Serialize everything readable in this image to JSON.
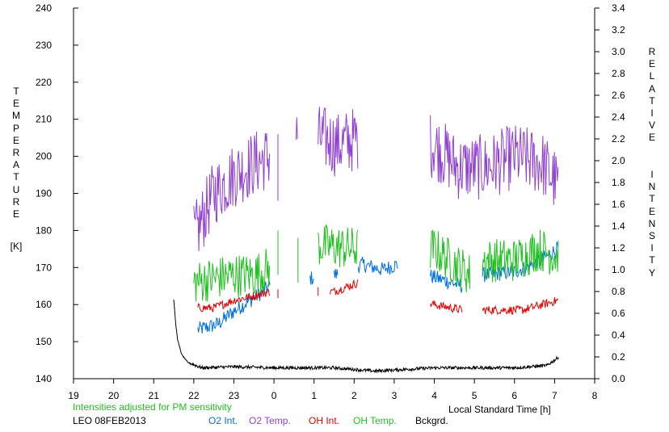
{
  "chart_data": {
    "type": "line",
    "title": "",
    "xlabel": "Local Standard Time [h]",
    "xlim": [
      19,
      32
    ],
    "x_tick_labels": [
      "19",
      "20",
      "21",
      "22",
      "23",
      "0",
      "1",
      "2",
      "3",
      "4",
      "5",
      "6",
      "7",
      "8"
    ],
    "ylabel_left": "TEMPERATURE",
    "ylabel_left_unit": "[K]",
    "ylim_left": [
      140,
      240
    ],
    "y_left_tick_labels": [
      "140",
      "150",
      "160",
      "170",
      "180",
      "190",
      "200",
      "210",
      "220",
      "230",
      "240"
    ],
    "ylabel_right": "RELATIVE INTENSITY",
    "ylim_right": [
      0,
      3.4
    ],
    "y_right_tick_labels": [
      "0.0",
      "0.2",
      "0.4",
      "0.6",
      "0.8",
      "1.0",
      "1.2",
      "1.4",
      "1.6",
      "1.8",
      "2.0",
      "2.2",
      "2.4",
      "2.6",
      "2.8",
      "3.0",
      "3.2",
      "3.4"
    ],
    "annotation": "Intensities adjusted for PM sensitivity",
    "station": "LEO 08FEB2013",
    "legend_position": "bottom",
    "grid": false,
    "series": [
      {
        "name": "O2 Int.",
        "axis": "right",
        "color": "#0070e0",
        "level": 0.9,
        "spread": 0.07,
        "segments": [
          [
            22.1,
            23.9
          ],
          [
            24.9,
            25.0
          ],
          [
            25.5,
            25.6
          ],
          [
            26.1,
            27.1
          ],
          [
            27.9,
            28.7
          ],
          [
            29.2,
            31.1
          ]
        ],
        "values": [
          [
            22.1,
            0.45
          ],
          [
            22.6,
            0.5
          ],
          [
            23.0,
            0.62
          ],
          [
            23.5,
            0.74
          ],
          [
            23.9,
            0.85
          ],
          [
            24.9,
            0.92
          ],
          [
            25.5,
            0.95
          ],
          [
            26.2,
            1.05
          ],
          [
            26.7,
            1.0
          ],
          [
            27.1,
            1.05
          ],
          [
            28.0,
            0.93
          ],
          [
            28.7,
            0.85
          ],
          [
            29.2,
            0.95
          ],
          [
            30.0,
            0.98
          ],
          [
            30.6,
            1.07
          ],
          [
            31.1,
            1.2
          ]
        ]
      },
      {
        "name": "O2 Temp.",
        "axis": "left",
        "color": "#9040d0",
        "level": 195,
        "spread": 9,
        "segments": [
          [
            22.0,
            23.9
          ],
          [
            24.1,
            24.1
          ],
          [
            24.55,
            24.6
          ],
          [
            25.1,
            26.1
          ],
          [
            27.9,
            31.1
          ]
        ],
        "values": [
          [
            22.0,
            178
          ],
          [
            22.5,
            190
          ],
          [
            23.0,
            195
          ],
          [
            23.5,
            198
          ],
          [
            23.9,
            200
          ],
          [
            24.1,
            197
          ],
          [
            24.55,
            205
          ],
          [
            25.2,
            205
          ],
          [
            25.6,
            203
          ],
          [
            26.1,
            205
          ],
          [
            28.0,
            203
          ],
          [
            28.6,
            197
          ],
          [
            29.3,
            197
          ],
          [
            30.0,
            200
          ],
          [
            30.7,
            198
          ],
          [
            31.1,
            192
          ]
        ]
      },
      {
        "name": "OH Int.",
        "axis": "right",
        "color": "#e00000",
        "level": 0.65,
        "spread": 0.04,
        "segments": [
          [
            22.1,
            23.9
          ],
          [
            24.1,
            24.1
          ],
          [
            25.1,
            25.1
          ],
          [
            25.4,
            26.1
          ],
          [
            27.9,
            28.7
          ],
          [
            29.2,
            31.1
          ]
        ],
        "values": [
          [
            22.1,
            0.65
          ],
          [
            22.5,
            0.65
          ],
          [
            23.0,
            0.72
          ],
          [
            23.5,
            0.76
          ],
          [
            23.9,
            0.8
          ],
          [
            24.1,
            0.78
          ],
          [
            25.1,
            0.8
          ],
          [
            25.5,
            0.8
          ],
          [
            26.1,
            0.88
          ],
          [
            28.0,
            0.68
          ],
          [
            28.7,
            0.63
          ],
          [
            29.2,
            0.63
          ],
          [
            30.2,
            0.63
          ],
          [
            31.1,
            0.72
          ]
        ]
      },
      {
        "name": "OH Temp.",
        "axis": "left",
        "color": "#20c020",
        "level": 170,
        "spread": 6,
        "segments": [
          [
            22.0,
            23.9
          ],
          [
            24.1,
            24.1
          ],
          [
            24.6,
            24.6
          ],
          [
            25.1,
            26.1
          ],
          [
            27.9,
            28.9
          ],
          [
            29.2,
            31.1
          ]
        ],
        "values": [
          [
            22.0,
            166
          ],
          [
            22.5,
            167
          ],
          [
            23.0,
            168
          ],
          [
            23.5,
            168
          ],
          [
            23.9,
            170
          ],
          [
            24.1,
            174
          ],
          [
            24.6,
            172
          ],
          [
            25.1,
            176
          ],
          [
            26.1,
            175
          ],
          [
            28.0,
            175
          ],
          [
            28.9,
            168
          ],
          [
            29.2,
            172
          ],
          [
            30.0,
            172
          ],
          [
            30.6,
            175
          ],
          [
            31.1,
            173
          ]
        ]
      },
      {
        "name": "Bckgrd.",
        "axis": "right",
        "color": "#000000",
        "level": 0.1,
        "spread": 0.015,
        "segments": [
          [
            21.5,
            31.1
          ]
        ],
        "values": [
          [
            21.5,
            0.73
          ],
          [
            21.55,
            0.5
          ],
          [
            21.6,
            0.35
          ],
          [
            21.7,
            0.22
          ],
          [
            21.85,
            0.15
          ],
          [
            22.2,
            0.1
          ],
          [
            23.0,
            0.11
          ],
          [
            24.0,
            0.1
          ],
          [
            25.5,
            0.1
          ],
          [
            26.5,
            0.07
          ],
          [
            28.0,
            0.1
          ],
          [
            30.0,
            0.1
          ],
          [
            30.8,
            0.12
          ],
          [
            31.0,
            0.17
          ],
          [
            31.1,
            0.2
          ]
        ]
      }
    ]
  }
}
